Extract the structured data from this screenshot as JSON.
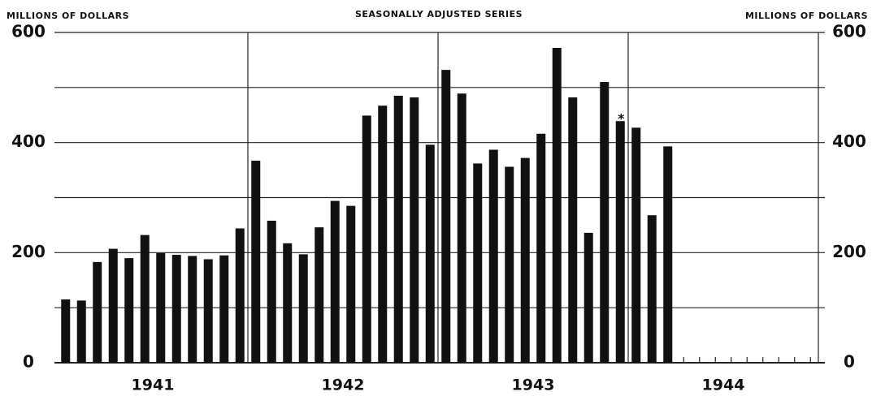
{
  "chart_data": {
    "type": "bar",
    "title": "SEASONALLY ADJUSTED SERIES",
    "y_label_left": "MILLIONS OF DOLLARS",
    "y_label_right": "MILLIONS OF DOLLARS",
    "groups": [
      "1941",
      "1942",
      "1943",
      "1944"
    ],
    "categories": [
      null,
      null,
      null,
      null,
      null,
      null,
      null,
      null,
      null,
      null,
      null,
      null,
      null,
      null,
      null,
      null,
      null,
      null,
      null,
      null,
      null,
      null,
      null,
      null,
      null,
      null,
      null,
      null,
      null,
      null,
      null,
      null,
      null,
      null,
      null,
      null,
      null,
      null,
      null,
      null,
      null,
      null,
      null,
      null,
      null,
      null,
      null,
      null
    ],
    "values": [
      115,
      113,
      183,
      207,
      190,
      232,
      199,
      196,
      194,
      188,
      195,
      244,
      367,
      258,
      217,
      197,
      246,
      294,
      285,
      449,
      467,
      485,
      482,
      396,
      532,
      489,
      362,
      387,
      356,
      372,
      416,
      572,
      482,
      236,
      510,
      439,
      427,
      268,
      393,
      null,
      null,
      null,
      null,
      null,
      null,
      null,
      null,
      null
    ],
    "annotations": [
      {
        "text": "*",
        "index": 35
      }
    ],
    "color": "#111111",
    "ylim": [
      0,
      600
    ],
    "yticks": [
      0,
      200,
      400,
      600
    ],
    "minor_yticks": [
      100,
      300,
      500
    ],
    "grid": true
  }
}
